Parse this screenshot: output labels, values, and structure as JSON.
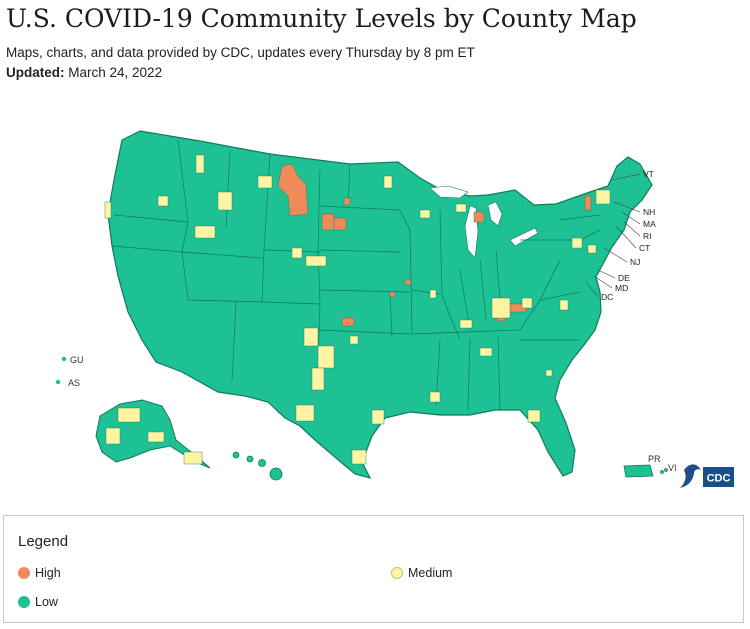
{
  "header": {
    "title": "U.S. COVID-19 Community Levels by County Map",
    "subtitle": "Maps, charts, and data provided by CDC, updates every Thursday by 8 pm ET",
    "updated_label": "Updated:",
    "updated_value": "March 24, 2022"
  },
  "colors": {
    "high": "#ef8a5a",
    "medium": "#fff4a3",
    "low": "#1ec194",
    "border": "#0f7a5c"
  },
  "map": {
    "territory_labels": {
      "gu": "GU",
      "as": "AS",
      "pr": "PR",
      "vi": "VI"
    },
    "state_callouts": {
      "vt": "VT",
      "nh": "NH",
      "ma": "MA",
      "ri": "RI",
      "ct": "CT",
      "nj": "NJ",
      "de": "DE",
      "md": "MD",
      "dc": "DC"
    },
    "logo_text": "CDC"
  },
  "legend": {
    "title": "Legend",
    "items": [
      {
        "label": "High",
        "level": "high"
      },
      {
        "label": "Medium",
        "level": "medium"
      },
      {
        "label": "Low",
        "level": "low"
      }
    ]
  }
}
